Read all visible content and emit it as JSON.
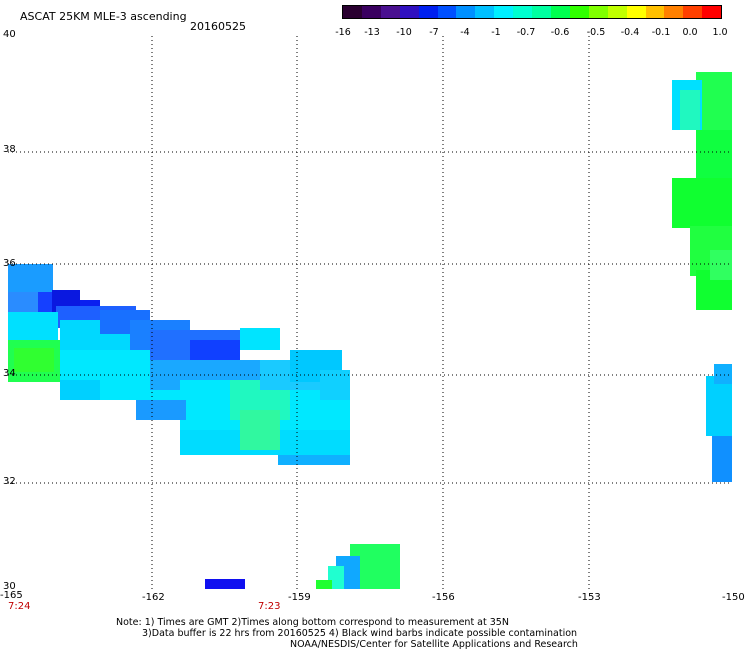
{
  "title": "ASCAT 25KM MLE-3 ascending",
  "date": "20160525",
  "colorbar": {
    "colors": [
      "#2a0030",
      "#3a0060",
      "#4a1090",
      "#3010c0",
      "#0020f0",
      "#0050ff",
      "#0090ff",
      "#00c0ff",
      "#00f0ff",
      "#00ffd0",
      "#00ffa0",
      "#00ff50",
      "#30ff00",
      "#80ff00",
      "#c0ff00",
      "#ffff00",
      "#ffc000",
      "#ff8000",
      "#ff4000",
      "#ff0000"
    ],
    "labels": [
      "-16",
      "-13",
      "-10",
      "-7",
      "-4",
      "-1",
      "-0.7",
      "-0.6",
      "-0.5",
      "-0.4",
      "-0.1",
      "0.0",
      "1.0"
    ]
  },
  "axes": {
    "lon_ticks": [
      "-165",
      "-162",
      "-159",
      "-156",
      "-153",
      "-150"
    ],
    "lat_ticks": [
      "40",
      "38",
      "36",
      "34",
      "32",
      "30"
    ]
  },
  "times": [
    "7:24",
    "7:23"
  ],
  "notes": [
    "Note: 1) Times are GMT 2)Times along bottom correspond to measurement at 35N",
    "3)Data buffer is 22 hrs from 20160525 4) Black wind barbs indicate possible contamination",
    "NOAA/NESDIS/Center for Satellite Applications and Research"
  ]
}
